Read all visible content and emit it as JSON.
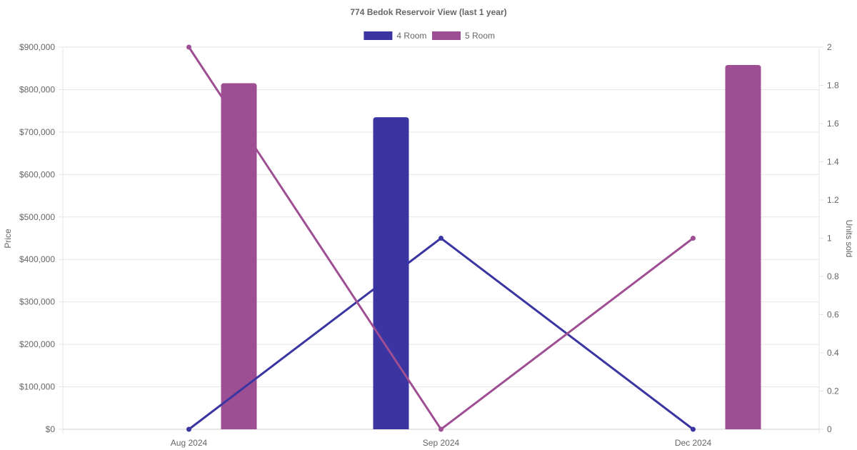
{
  "chart_data": {
    "type": "bar",
    "title": "774 Bedok Reservoir View (last 1 year)",
    "categories": [
      "Aug 2024",
      "Sep 2024",
      "Dec 2024"
    ],
    "y_left": {
      "label": "Price",
      "ylim": [
        0,
        900000
      ],
      "ticks": [
        {
          "value": 0,
          "label": "$0"
        },
        {
          "value": 100000,
          "label": "$100,000"
        },
        {
          "value": 200000,
          "label": "$200,000"
        },
        {
          "value": 300000,
          "label": "$300,000"
        },
        {
          "value": 400000,
          "label": "$400,000"
        },
        {
          "value": 500000,
          "label": "$500,000"
        },
        {
          "value": 600000,
          "label": "$600,000"
        },
        {
          "value": 700000,
          "label": "$700,000"
        },
        {
          "value": 800000,
          "label": "$800,000"
        },
        {
          "value": 900000,
          "label": "$900,000"
        }
      ]
    },
    "y_right": {
      "label": "Units sold",
      "ylim": [
        0,
        2
      ],
      "ticks": [
        {
          "value": 0,
          "label": "0"
        },
        {
          "value": 0.2,
          "label": "0.2"
        },
        {
          "value": 0.4,
          "label": "0.4"
        },
        {
          "value": 0.6,
          "label": "0.6"
        },
        {
          "value": 0.8,
          "label": "0.8"
        },
        {
          "value": 1,
          "label": "1"
        },
        {
          "value": 1.2,
          "label": "1.2"
        },
        {
          "value": 1.4,
          "label": "1.4"
        },
        {
          "value": 1.6,
          "label": "1.6"
        },
        {
          "value": 1.8,
          "label": "1.8"
        },
        {
          "value": 2,
          "label": "2"
        }
      ]
    },
    "legend": {
      "position": "top-center",
      "entries": [
        {
          "name": "4 Room",
          "color": "#3a35a0"
        },
        {
          "name": "5 Room",
          "color": "#9e4f93"
        }
      ]
    },
    "grid": true,
    "series": [
      {
        "name": "4 Room",
        "color": "#3a35a0",
        "price_bars": [
          null,
          735000,
          null
        ],
        "units_line": [
          0,
          1,
          0
        ]
      },
      {
        "name": "5 Room",
        "color": "#9e4f93",
        "price_bars": [
          815000,
          null,
          858000
        ],
        "units_line": [
          2,
          0,
          1
        ]
      }
    ]
  }
}
